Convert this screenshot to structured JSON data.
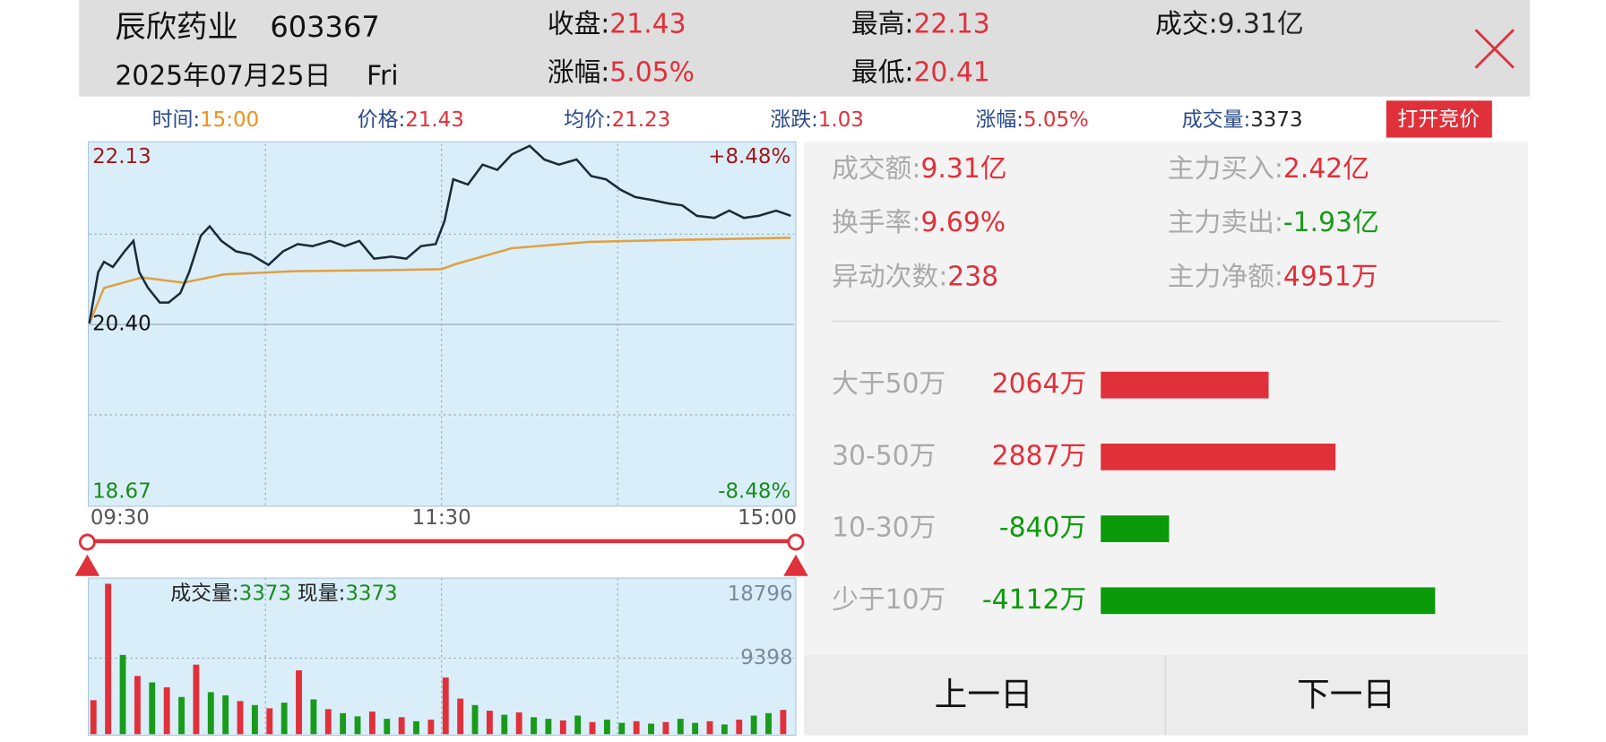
{
  "header": {
    "name": "辰欣药业",
    "code": "603367",
    "date": "2025年07月25日",
    "weekday": "Fri",
    "fields": [
      {
        "label": "收盘:",
        "value": "21.43",
        "color": "#e0303a"
      },
      {
        "label": "涨幅:",
        "value": "5.05%",
        "color": "#e0303a"
      },
      {
        "label": "最高:",
        "value": "22.13",
        "color": "#e0303a"
      },
      {
        "label": "最低:",
        "value": "20.41",
        "color": "#e0303a"
      },
      {
        "label": "成交:",
        "value": "9.31亿",
        "color": "#222222"
      }
    ]
  },
  "info_bar": {
    "fields": [
      {
        "label": "时间:",
        "value": "15:00",
        "color": "#f0901a"
      },
      {
        "label": "价格:",
        "value": "21.43",
        "color": "#e0303a"
      },
      {
        "label": "均价:",
        "value": "21.23",
        "color": "#e0303a"
      },
      {
        "label": "涨跌:",
        "value": "1.03",
        "color": "#e0303a"
      },
      {
        "label": "涨幅:",
        "value": "5.05%",
        "color": "#e0303a"
      },
      {
        "label": "成交量:",
        "value": "3373",
        "color": "#222222"
      }
    ],
    "button": "打开竞价"
  },
  "price_chart": {
    "type": "line",
    "xlim": [
      0,
      240
    ],
    "xticks": [
      {
        "value": 0,
        "label": "09:30"
      },
      {
        "value": 120,
        "label": "11:30"
      },
      {
        "value": 240,
        "label": "15:00"
      }
    ],
    "ylim": [
      18.67,
      22.13
    ],
    "yticks": [
      22.13,
      {
        "value": 20.4,
        "label": "20.40"
      },
      18.67
    ],
    "y2lim": [
      -8.48,
      8.48
    ],
    "y2ticks": [
      {
        "value": 8.48,
        "label": "+8.48%"
      },
      {
        "value": -8.48,
        "label": "-8.48%"
      }
    ],
    "price_line": {
      "color": "#1a2a3a",
      "x": [
        0,
        3,
        5,
        8,
        12,
        15,
        17,
        20,
        24,
        27,
        31,
        34,
        38,
        41,
        45,
        50,
        55,
        61,
        66,
        71,
        76,
        82,
        87,
        92,
        97,
        103,
        108,
        113,
        118,
        121,
        124,
        129,
        134,
        139,
        144,
        150,
        155,
        160,
        166,
        171,
        176,
        181,
        186,
        192,
        197,
        202,
        207,
        213,
        218,
        223,
        228,
        234,
        239
      ],
      "values": [
        20.41,
        20.9,
        21.0,
        20.95,
        21.1,
        21.2,
        20.9,
        20.75,
        20.61,
        20.61,
        20.7,
        20.9,
        21.25,
        21.34,
        21.2,
        21.1,
        21.07,
        20.97,
        21.1,
        21.17,
        21.15,
        21.2,
        21.15,
        21.2,
        21.03,
        21.05,
        21.03,
        21.15,
        21.17,
        21.39,
        21.79,
        21.74,
        21.93,
        21.88,
        22.03,
        22.11,
        21.98,
        21.93,
        21.98,
        21.82,
        21.79,
        21.69,
        21.62,
        21.59,
        21.56,
        21.54,
        21.44,
        21.42,
        21.49,
        21.42,
        21.44,
        21.49,
        21.44
      ]
    },
    "avg_line": {
      "color": "#e0a040",
      "x": [
        0,
        5,
        18,
        32,
        46,
        70,
        100,
        120,
        125,
        144,
        170,
        200,
        239
      ],
      "values": [
        20.41,
        20.75,
        20.85,
        20.8,
        20.88,
        20.91,
        20.92,
        20.93,
        20.98,
        21.13,
        21.19,
        21.21,
        21.23
      ]
    }
  },
  "volume_chart": {
    "type": "bar",
    "label": "成交量:",
    "value": "3373",
    "label2": "现量:",
    "value2": "3373",
    "xlim": [
      0,
      240
    ],
    "ylim": [
      0,
      18796
    ],
    "yticks": [
      18796,
      9398
    ],
    "x": [
      0,
      5,
      10,
      15,
      20,
      25,
      30,
      35,
      40,
      45,
      50,
      55,
      60,
      65,
      70,
      75,
      80,
      85,
      90,
      95,
      100,
      105,
      110,
      115,
      120,
      125,
      130,
      135,
      140,
      145,
      150,
      155,
      160,
      165,
      170,
      175,
      180,
      185,
      190,
      195,
      200,
      205,
      210,
      215,
      220,
      225,
      230,
      235
    ],
    "values": [
      4200,
      18600,
      9800,
      7200,
      6400,
      5800,
      4600,
      8600,
      5200,
      4800,
      4100,
      3600,
      3200,
      3900,
      7900,
      4300,
      3100,
      2600,
      2200,
      2800,
      1900,
      2100,
      1600,
      1800,
      7000,
      4400,
      3600,
      2900,
      2400,
      2700,
      2100,
      1900,
      1700,
      2300,
      1500,
      1800,
      1400,
      1600,
      1300,
      1500,
      1900,
      1400,
      1600,
      1200,
      1800,
      2300,
      2600,
      3000
    ],
    "colors": [
      "#e0303a",
      "#e0303a",
      "#1a9a1a",
      "#e0303a",
      "#1a9a1a",
      "#e0303a",
      "#1a9a1a",
      "#e0303a",
      "#1a9a1a",
      "#1a9a1a",
      "#e0303a",
      "#1a9a1a",
      "#e0303a",
      "#1a9a1a",
      "#e0303a",
      "#1a9a1a",
      "#e0303a",
      "#1a9a1a",
      "#1a9a1a",
      "#e0303a",
      "#1a9a1a",
      "#e0303a",
      "#1a9a1a",
      "#e0303a",
      "#e0303a",
      "#e0303a",
      "#1a9a1a",
      "#e0303a",
      "#1a9a1a",
      "#e0303a",
      "#1a9a1a",
      "#1a9a1a",
      "#e0303a",
      "#1a9a1a",
      "#e0303a",
      "#1a9a1a",
      "#1a9a1a",
      "#e0303a",
      "#1a9a1a",
      "#e0303a",
      "#1a9a1a",
      "#1a9a1a",
      "#e0303a",
      "#1a9a1a",
      "#e0303a",
      "#1a9a1a",
      "#1a9a1a",
      "#e0303a"
    ]
  },
  "stats": [
    {
      "label": "成交额:",
      "value": "9.31亿",
      "color": "#e0303a"
    },
    {
      "label": "主力买入:",
      "value": "2.42亿",
      "color": "#e0303a"
    },
    {
      "label": "换手率:",
      "value": "9.69%",
      "color": "#e0303a"
    },
    {
      "label": "主力卖出:",
      "value": "-1.93亿",
      "color": "#1a9a1a"
    },
    {
      "label": "异动次数:",
      "value": "238",
      "color": "#e0303a"
    },
    {
      "label": "主力净额:",
      "value": "4951万",
      "color": "#e0303a"
    }
  ],
  "flows": {
    "type": "bar",
    "xlim": [
      0,
      4900
    ],
    "categories": [
      "大于50万",
      "30-50万",
      "10-30万",
      "少于10万"
    ],
    "values": [
      2064,
      2887,
      -840,
      -4112
    ],
    "value_labels": [
      "2064万",
      "2887万",
      "-840万",
      "-4112万"
    ],
    "colors": [
      "#e0303a",
      "#e0303a",
      "#0a9a0a",
      "#0a9a0a"
    ]
  },
  "buttons": [
    "上一日",
    "下一日"
  ]
}
